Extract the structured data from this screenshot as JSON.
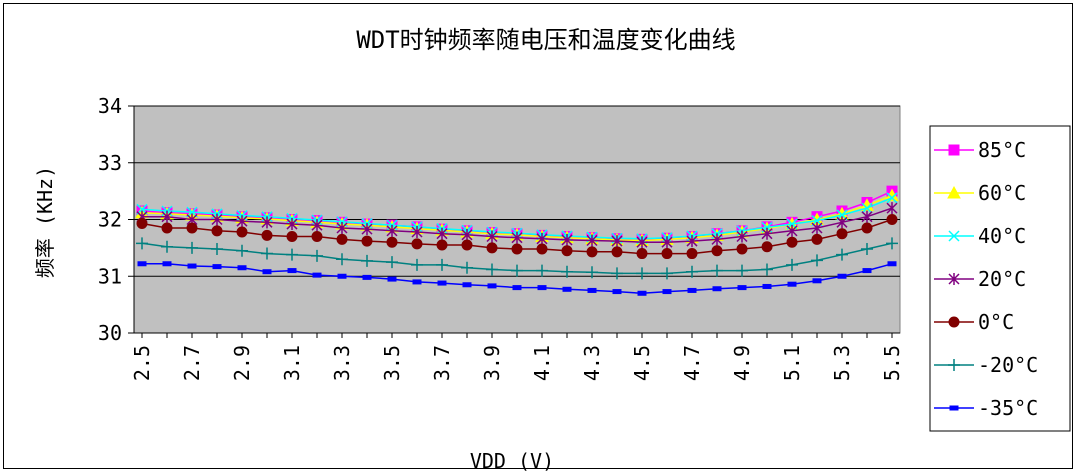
{
  "chart_data": {
    "type": "line",
    "title": "WDT时钟频率随电压和温度变化曲线",
    "xlabel": "VDD (V)",
    "ylabel": "频率 (KHz)",
    "ylim": [
      30,
      34
    ],
    "yticks": [
      30,
      31,
      32,
      33,
      34
    ],
    "grid": true,
    "legend_position": "right",
    "x": [
      2.5,
      2.6,
      2.7,
      2.8,
      2.9,
      3.0,
      3.1,
      3.2,
      3.3,
      3.4,
      3.5,
      3.6,
      3.7,
      3.8,
      3.9,
      4.0,
      4.1,
      4.2,
      4.3,
      4.4,
      4.5,
      4.6,
      4.7,
      4.8,
      4.9,
      5.0,
      5.1,
      5.2,
      5.3,
      5.4,
      5.5
    ],
    "xticklabels": [
      "2.5",
      "2.7",
      "2.9",
      "3.1",
      "3.3",
      "3.5",
      "3.7",
      "3.9",
      "4.1",
      "4.3",
      "4.5",
      "4.7",
      "4.9",
      "5.1",
      "5.3",
      "5.5"
    ],
    "series": [
      {
        "name": "85°C",
        "color": "#FF00FF",
        "marker": "square",
        "values": [
          32.15,
          32.12,
          32.1,
          32.08,
          32.05,
          32.03,
          32.0,
          31.98,
          31.95,
          31.92,
          31.9,
          31.87,
          31.83,
          31.8,
          31.77,
          31.75,
          31.72,
          31.7,
          31.68,
          31.66,
          31.65,
          31.67,
          31.7,
          31.75,
          31.8,
          31.87,
          31.95,
          32.05,
          32.15,
          32.3,
          32.5
        ]
      },
      {
        "name": "60°C",
        "color": "#FFFF00",
        "marker": "triangle",
        "values": [
          32.12,
          32.1,
          32.08,
          32.06,
          32.03,
          32.01,
          31.98,
          31.95,
          31.92,
          31.9,
          31.87,
          31.84,
          31.81,
          31.78,
          31.75,
          31.73,
          31.7,
          31.68,
          31.66,
          31.64,
          31.63,
          31.65,
          31.68,
          31.72,
          31.78,
          31.84,
          31.92,
          32.0,
          32.1,
          32.25,
          32.42
        ]
      },
      {
        "name": "40°C",
        "color": "#00FFFF",
        "marker": "x",
        "values": [
          32.18,
          32.15,
          32.13,
          32.1,
          32.07,
          32.05,
          32.02,
          31.99,
          31.96,
          31.93,
          31.9,
          31.87,
          31.84,
          31.81,
          31.78,
          31.76,
          31.73,
          31.71,
          31.69,
          31.67,
          31.66,
          31.68,
          31.71,
          31.75,
          31.8,
          31.86,
          31.92,
          31.98,
          32.08,
          32.2,
          32.38
        ]
      },
      {
        "name": "20°C",
        "color": "#800080",
        "marker": "star",
        "values": [
          32.05,
          32.05,
          32.0,
          32.0,
          31.97,
          31.95,
          31.92,
          31.9,
          31.85,
          31.83,
          31.8,
          31.78,
          31.75,
          31.73,
          31.7,
          31.68,
          31.66,
          31.64,
          31.63,
          31.62,
          31.6,
          31.6,
          31.62,
          31.65,
          31.7,
          31.75,
          31.8,
          31.85,
          31.95,
          32.05,
          32.2
        ]
      },
      {
        "name": "0°C",
        "color": "#800000",
        "marker": "circle",
        "values": [
          31.93,
          31.85,
          31.85,
          31.8,
          31.78,
          31.72,
          31.7,
          31.7,
          31.65,
          31.62,
          31.6,
          31.57,
          31.55,
          31.55,
          31.5,
          31.48,
          31.48,
          31.45,
          31.43,
          31.43,
          31.4,
          31.4,
          31.4,
          31.45,
          31.48,
          31.52,
          31.6,
          31.65,
          31.75,
          31.85,
          32.0
        ]
      },
      {
        "name": "-20°C",
        "color": "#008080",
        "marker": "plus",
        "values": [
          31.58,
          31.52,
          31.5,
          31.48,
          31.45,
          31.4,
          31.38,
          31.36,
          31.3,
          31.27,
          31.25,
          31.2,
          31.2,
          31.15,
          31.12,
          31.1,
          31.1,
          31.08,
          31.07,
          31.05,
          31.05,
          31.05,
          31.08,
          31.1,
          31.1,
          31.12,
          31.2,
          31.28,
          31.38,
          31.48,
          31.58
        ]
      },
      {
        "name": "-35°C",
        "color": "#0000FF",
        "marker": "dash",
        "values": [
          31.22,
          31.22,
          31.18,
          31.17,
          31.15,
          31.08,
          31.1,
          31.02,
          31.0,
          30.98,
          30.95,
          30.9,
          30.88,
          30.85,
          30.83,
          30.8,
          30.8,
          30.77,
          30.75,
          30.73,
          30.7,
          30.73,
          30.75,
          30.78,
          30.8,
          30.82,
          30.86,
          30.92,
          31.0,
          31.1,
          31.22
        ]
      }
    ]
  }
}
